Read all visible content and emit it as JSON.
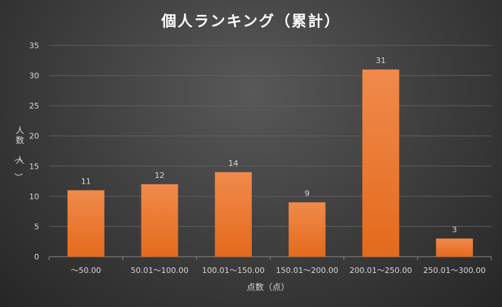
{
  "chart_data": {
    "type": "bar",
    "title": "個人ランキング（累計）",
    "xlabel": "点数（点）",
    "ylabel": "人数（人）",
    "categories": [
      "〜50.00",
      "50.01〜100.00",
      "100.01〜150.00",
      "150.01〜200.00",
      "200.01〜250.00",
      "250.01〜300.00"
    ],
    "values": [
      11,
      12,
      14,
      9,
      31,
      3
    ],
    "ylim": [
      0,
      35
    ],
    "yticks": [
      0,
      5,
      10,
      15,
      20,
      25,
      30,
      35
    ],
    "grid": true,
    "legend": "none",
    "data_labels": true,
    "colors": {
      "bar_top": "#f08a4b",
      "bar_bottom": "#e46a1c",
      "background": "#3c3c3c"
    }
  }
}
